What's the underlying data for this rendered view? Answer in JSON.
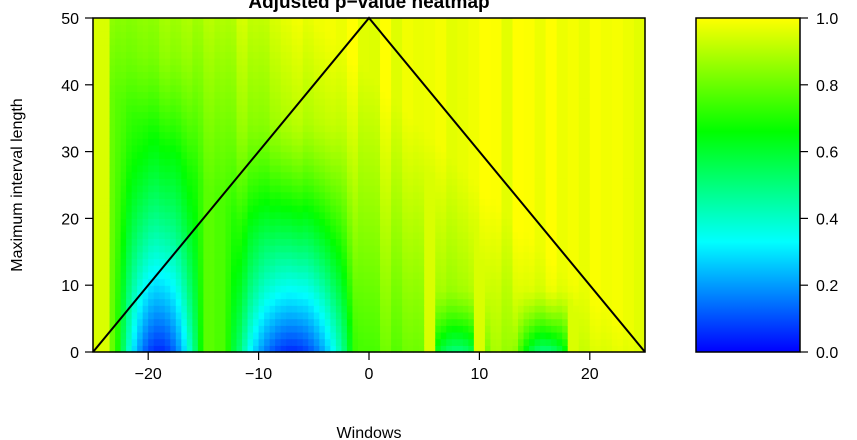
{
  "chart_data": {
    "type": "heatmap",
    "title": "Adjusted p−value heatmap",
    "xlabel": "Windows",
    "ylabel": "Maximum interval length",
    "xlim": [
      -25,
      25
    ],
    "ylim": [
      0,
      50
    ],
    "x_ticks": [
      -20,
      -10,
      0,
      10,
      20
    ],
    "x_tick_labels": [
      "−20",
      "−10",
      "0",
      "10",
      "20"
    ],
    "y_ticks": [
      0,
      10,
      20,
      30,
      40,
      50
    ],
    "y_tick_labels": [
      "0",
      "10",
      "20",
      "30",
      "40",
      "50"
    ],
    "colorbar": {
      "min": 0,
      "max": 1,
      "ticks": [
        0,
        0.2,
        0.4,
        0.6,
        0.8,
        1
      ],
      "tick_labels": [
        "0.0",
        "0.2",
        "0.4",
        "0.6",
        "0.8",
        "1.0"
      ],
      "colors": [
        "#0000ff",
        "#00ffff",
        "#00ff00",
        "#ffff00"
      ]
    },
    "triangle": [
      [
        -25,
        0
      ],
      [
        0,
        50
      ],
      [
        25,
        0
      ]
    ],
    "overlay_color": "#000000",
    "low_value_regions": [
      {
        "x_center": -19,
        "width": 4,
        "max_length": 45,
        "min_value": 0.05
      },
      {
        "x_center": -7,
        "width": 6,
        "max_length": 35,
        "min_value": 0.05
      },
      {
        "x_center": 8,
        "width": 3,
        "max_length": 10,
        "min_value": 0.5
      },
      {
        "x_center": 16,
        "width": 3,
        "max_length": 10,
        "min_value": 0.5
      }
    ]
  }
}
